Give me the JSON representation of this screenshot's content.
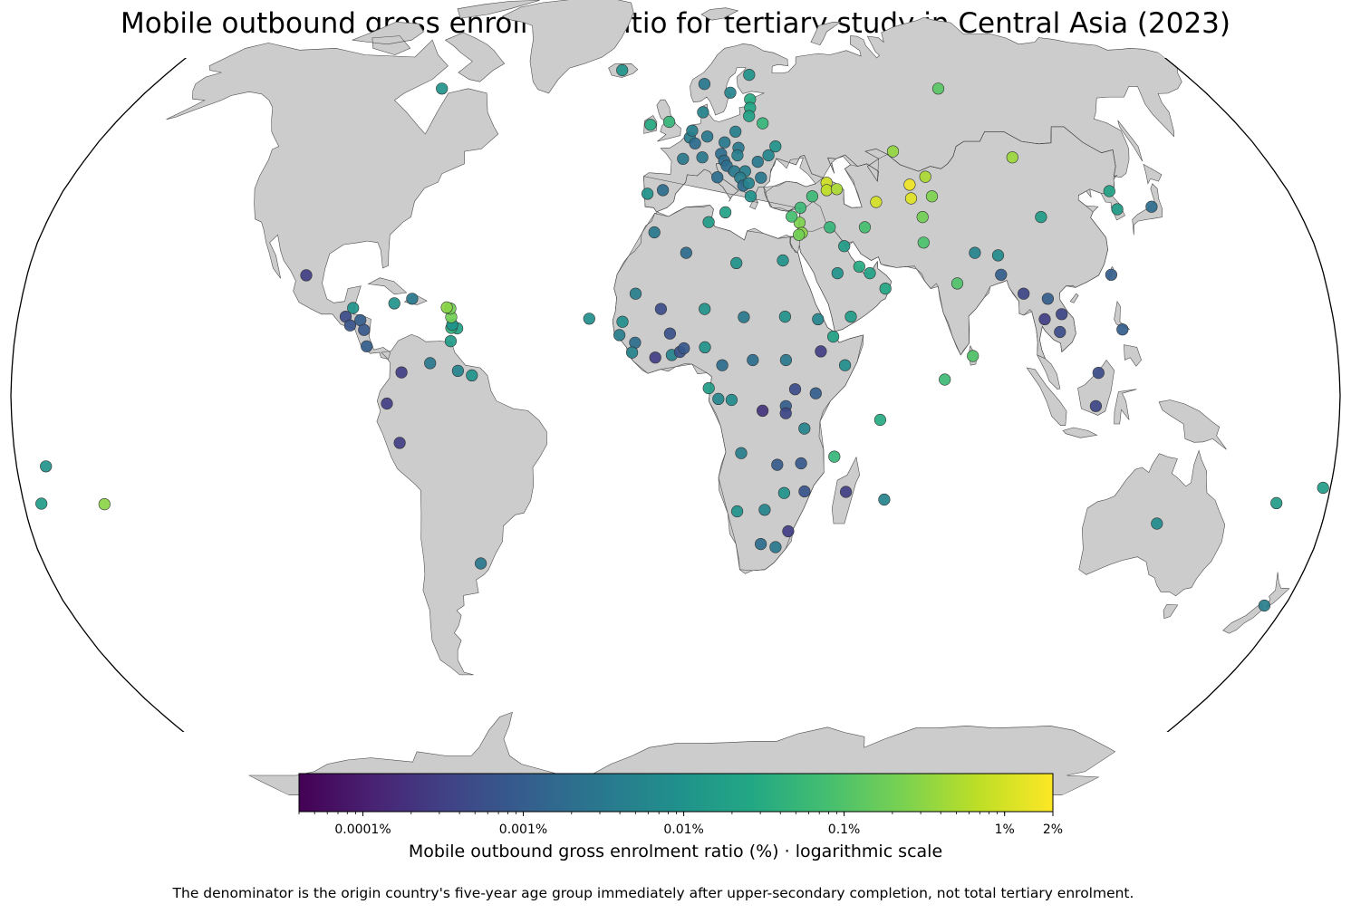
{
  "title": "Mobile outbound gross enrolment ratio for tertiary study in Central Asia (2023)",
  "colorbar": {
    "label": "Mobile outbound gross enrolment ratio (%) · logarithmic scale",
    "min_percent": 4e-05,
    "max_percent": 2,
    "scale": "log",
    "colormap": "viridis",
    "ticks": [
      {
        "value": 0.0001,
        "label": "0.0001%"
      },
      {
        "value": 0.001,
        "label": "0.001%"
      },
      {
        "value": 0.01,
        "label": "0.01%"
      },
      {
        "value": 0.1,
        "label": "0.1%"
      },
      {
        "value": 1,
        "label": "1%"
      },
      {
        "value": 2,
        "label": "2%"
      }
    ]
  },
  "footnote": "The denominator is the origin country's five-year age group immediately after upper-secondary completion, not total tertiary enrolment.",
  "colors": {
    "land": "#cccccc",
    "ocean": "#ffffff",
    "border": "#000000",
    "marker_edge": "#333333"
  },
  "map": {
    "projection": "Robinson",
    "points": [
      {
        "lon": 69.3,
        "lat": 41.3,
        "value": 1.6
      },
      {
        "lon": 68.8,
        "lat": 38.6,
        "value": 1.2
      },
      {
        "lon": 74.6,
        "lat": 42.9,
        "value": 0.5
      },
      {
        "lon": 58.4,
        "lat": 37.9,
        "value": 1.0
      },
      {
        "lon": 67.0,
        "lat": 48.0,
        "value": 0.35
      },
      {
        "lon": 44.8,
        "lat": 41.7,
        "value": 0.9
      },
      {
        "lon": 44.5,
        "lat": 40.2,
        "value": 0.7
      },
      {
        "lon": 47.5,
        "lat": 40.4,
        "value": 0.5
      },
      {
        "lon": 103.0,
        "lat": 46.8,
        "value": 0.4
      },
      {
        "lon": 71.0,
        "lat": 35.0,
        "value": 0.2
      },
      {
        "lon": 75.0,
        "lat": 39.0,
        "value": 0.25
      },
      {
        "lon": 90.0,
        "lat": 61.0,
        "value": 0.12
      },
      {
        "lon": 54.0,
        "lat": 33.0,
        "value": 0.08
      },
      {
        "lon": 36.2,
        "lat": 36.8,
        "value": 0.06
      },
      {
        "lon": 35.5,
        "lat": 33.9,
        "value": 0.25
      },
      {
        "lon": 35.9,
        "lat": 31.9,
        "value": 0.3
      },
      {
        "lon": 35.0,
        "lat": 31.5,
        "value": 0.2
      },
      {
        "lon": 33.4,
        "lat": 35.1,
        "value": 0.08
      },
      {
        "lon": 40.0,
        "lat": 39.0,
        "value": 0.06
      },
      {
        "lon": 44.0,
        "lat": 33.0,
        "value": 0.05
      },
      {
        "lon": 47.5,
        "lat": 29.3,
        "value": 0.015
      },
      {
        "lon": 51.2,
        "lat": 25.3,
        "value": 0.03
      },
      {
        "lon": 54.0,
        "lat": 24.0,
        "value": 0.02
      },
      {
        "lon": 58.0,
        "lat": 21.0,
        "value": 0.025
      },
      {
        "lon": 45.0,
        "lat": 24.0,
        "value": 0.01
      },
      {
        "lon": 48.0,
        "lat": 15.5,
        "value": 0.015
      },
      {
        "lon": 70.0,
        "lat": 30.0,
        "value": 0.09
      },
      {
        "lon": 78.0,
        "lat": 22.0,
        "value": 0.1
      },
      {
        "lon": 84.0,
        "lat": 28.0,
        "value": 0.005
      },
      {
        "lon": 90.4,
        "lat": 23.7,
        "value": 0.001
      },
      {
        "lon": 90.4,
        "lat": 27.5,
        "value": 0.007
      },
      {
        "lon": 73.0,
        "lat": 3.2,
        "value": 0.06
      },
      {
        "lon": 80.8,
        "lat": 7.8,
        "value": 0.1
      },
      {
        "lon": 105.0,
        "lat": 35.0,
        "value": 0.015
      },
      {
        "lon": 127.5,
        "lat": 40.0,
        "value": 0.02
      },
      {
        "lon": 127.8,
        "lat": 36.5,
        "value": 0.015
      },
      {
        "lon": 138.0,
        "lat": 37.0,
        "value": 0.002
      },
      {
        "lon": 121.0,
        "lat": 23.7,
        "value": 0.001
      },
      {
        "lon": 96.0,
        "lat": 20.0,
        "value": 0.0004
      },
      {
        "lon": 102.5,
        "lat": 19.0,
        "value": 0.001
      },
      {
        "lon": 101.0,
        "lat": 15.0,
        "value": 0.0003
      },
      {
        "lon": 105.8,
        "lat": 16.0,
        "value": 0.0004
      },
      {
        "lon": 104.9,
        "lat": 12.5,
        "value": 0.0005
      },
      {
        "lon": 122.0,
        "lat": 13.0,
        "value": 0.001
      },
      {
        "lon": 114.7,
        "lat": 4.5,
        "value": 0.0005
      },
      {
        "lon": 113.9,
        "lat": -2.0,
        "value": 0.0004
      },
      {
        "lon": 134.0,
        "lat": -25.0,
        "value": 0.007
      },
      {
        "lon": 174.0,
        "lat": -41.0,
        "value": 0.004
      },
      {
        "lon": 166.0,
        "lat": -21.0,
        "value": 0.015
      },
      {
        "lon": 178.0,
        "lat": -18.0,
        "value": 0.015
      },
      {
        "lon": -172.0,
        "lat": -13.8,
        "value": 0.01
      },
      {
        "lon": -175.2,
        "lat": -21.1,
        "value": 0.015
      },
      {
        "lon": -157.8,
        "lat": -21.2,
        "value": 0.3
      },
      {
        "lon": 9.0,
        "lat": 56.0,
        "value": 0.005
      },
      {
        "lon": 10.0,
        "lat": 62.0,
        "value": 0.003
      },
      {
        "lon": 18.6,
        "lat": 60.1,
        "value": 0.005
      },
      {
        "lon": 26.0,
        "lat": 64.0,
        "value": 0.01
      },
      {
        "lon": 25.0,
        "lat": 58.7,
        "value": 0.03
      },
      {
        "lon": 24.6,
        "lat": 56.9,
        "value": 0.025
      },
      {
        "lon": 23.9,
        "lat": 55.2,
        "value": 0.02
      },
      {
        "lon": 28.0,
        "lat": 53.7,
        "value": 0.05
      },
      {
        "lon": 31.0,
        "lat": 49.0,
        "value": 0.01
      },
      {
        "lon": 28.5,
        "lat": 47.2,
        "value": 0.006
      },
      {
        "lon": -19.0,
        "lat": 65.0,
        "value": 0.01
      },
      {
        "lon": -8.0,
        "lat": 53.4,
        "value": 0.03
      },
      {
        "lon": -2.0,
        "lat": 54.0,
        "value": 0.05
      },
      {
        "lon": 2.3,
        "lat": 46.5,
        "value": 0.003
      },
      {
        "lon": 4.5,
        "lat": 50.8,
        "value": 0.004
      },
      {
        "lon": 5.3,
        "lat": 52.2,
        "value": 0.004
      },
      {
        "lon": 6.1,
        "lat": 49.6,
        "value": 0.002
      },
      {
        "lon": 10.0,
        "lat": 51.0,
        "value": 0.003
      },
      {
        "lon": 8.2,
        "lat": 46.8,
        "value": 0.003
      },
      {
        "lon": 14.0,
        "lat": 47.5,
        "value": 0.002
      },
      {
        "lon": 15.3,
        "lat": 49.8,
        "value": 0.003
      },
      {
        "lon": 19.0,
        "lat": 52.0,
        "value": 0.004
      },
      {
        "lon": 19.5,
        "lat": 48.7,
        "value": 0.003
      },
      {
        "lon": 19.0,
        "lat": 47.2,
        "value": 0.004
      },
      {
        "lon": 14.8,
        "lat": 46.1,
        "value": 0.002
      },
      {
        "lon": 15.5,
        "lat": 45.1,
        "value": 0.002
      },
      {
        "lon": 17.7,
        "lat": 44.0,
        "value": 0.003
      },
      {
        "lon": 20.9,
        "lat": 44.0,
        "value": 0.004
      },
      {
        "lon": 19.3,
        "lat": 42.7,
        "value": 0.004
      },
      {
        "lon": 20.0,
        "lat": 41.1,
        "value": 0.002
      },
      {
        "lon": 21.7,
        "lat": 41.6,
        "value": 0.005
      },
      {
        "lon": 25.5,
        "lat": 42.7,
        "value": 0.003
      },
      {
        "lon": 25.0,
        "lat": 45.9,
        "value": 0.003
      },
      {
        "lon": 22.0,
        "lat": 39.0,
        "value": 0.01
      },
      {
        "lon": 12.5,
        "lat": 42.8,
        "value": 0.002
      },
      {
        "lon": -3.7,
        "lat": 40.2,
        "value": 0.002
      },
      {
        "lon": -8.2,
        "lat": 39.5,
        "value": 0.01
      },
      {
        "lon": 14.4,
        "lat": 35.9,
        "value": 0.02
      },
      {
        "lon": -6.0,
        "lat": 32.0,
        "value": 0.003
      },
      {
        "lon": 3.0,
        "lat": 28.0,
        "value": 0.002
      },
      {
        "lon": 9.5,
        "lat": 34.0,
        "value": 0.015
      },
      {
        "lon": 17.0,
        "lat": 26.0,
        "value": 0.01
      },
      {
        "lon": 30.0,
        "lat": 26.5,
        "value": 0.01
      },
      {
        "lon": 30.0,
        "lat": 15.5,
        "value": 0.01
      },
      {
        "lon": -11.0,
        "lat": 20.0,
        "value": 0.004
      },
      {
        "lon": -14.5,
        "lat": 14.5,
        "value": 0.008
      },
      {
        "lon": -4.0,
        "lat": 17.0,
        "value": 0.0005
      },
      {
        "lon": 8.0,
        "lat": 17.0,
        "value": 0.01
      },
      {
        "lon": 18.7,
        "lat": 15.4,
        "value": 0.003
      },
      {
        "lon": -15.3,
        "lat": 11.9,
        "value": 0.004
      },
      {
        "lon": -11.0,
        "lat": 10.4,
        "value": 0.002
      },
      {
        "lon": -11.8,
        "lat": 8.5,
        "value": 0.005
      },
      {
        "lon": -5.5,
        "lat": 7.5,
        "value": 0.0003
      },
      {
        "lon": -1.5,
        "lat": 12.2,
        "value": 0.0006
      },
      {
        "lon": -1.0,
        "lat": 8.0,
        "value": 0.005
      },
      {
        "lon": 1.2,
        "lat": 8.6,
        "value": 0.0006
      },
      {
        "lon": 2.3,
        "lat": 9.3,
        "value": 0.0008
      },
      {
        "lon": 8.0,
        "lat": 9.5,
        "value": 0.01
      },
      {
        "lon": 12.7,
        "lat": 6.0,
        "value": 0.002
      },
      {
        "lon": 9.0,
        "lat": 1.5,
        "value": 0.015
      },
      {
        "lon": 11.6,
        "lat": -0.6,
        "value": 0.006
      },
      {
        "lon": 15.2,
        "lat": -0.8,
        "value": 0.007
      },
      {
        "lon": 21.0,
        "lat": 7.0,
        "value": 0.002
      },
      {
        "lon": 30.0,
        "lat": 7.0,
        "value": 0.003
      },
      {
        "lon": 39.5,
        "lat": 8.7,
        "value": 0.0003
      },
      {
        "lon": 39.0,
        "lat": 15.0,
        "value": 0.006
      },
      {
        "lon": 43.0,
        "lat": 11.6,
        "value": 0.02
      },
      {
        "lon": 46.0,
        "lat": 6.0,
        "value": 0.008
      },
      {
        "lon": 38.0,
        "lat": 0.5,
        "value": 0.001
      },
      {
        "lon": 32.4,
        "lat": 1.3,
        "value": 0.0005
      },
      {
        "lon": 23.6,
        "lat": -2.9,
        "value": 0.0002
      },
      {
        "lon": 29.9,
        "lat": -2.0,
        "value": 0.001
      },
      {
        "lon": 29.9,
        "lat": -3.4,
        "value": 0.0004
      },
      {
        "lon": 35.0,
        "lat": -6.4,
        "value": 0.005
      },
      {
        "lon": 17.9,
        "lat": -11.2,
        "value": 0.004
      },
      {
        "lon": 27.8,
        "lat": -13.5,
        "value": 0.0009
      },
      {
        "lon": 34.3,
        "lat": -13.2,
        "value": 0.0008
      },
      {
        "lon": 35.5,
        "lat": -18.7,
        "value": 0.0007
      },
      {
        "lon": 29.9,
        "lat": -19.0,
        "value": 0.01
      },
      {
        "lon": 24.7,
        "lat": -22.3,
        "value": 0.005
      },
      {
        "lon": 17.1,
        "lat": -22.6,
        "value": 0.01
      },
      {
        "lon": 24.0,
        "lat": -29.0,
        "value": 0.002
      },
      {
        "lon": 31.5,
        "lat": -26.5,
        "value": 0.0003
      },
      {
        "lon": 28.2,
        "lat": -29.6,
        "value": 0.003
      },
      {
        "lon": 46.9,
        "lat": -18.8,
        "value": 0.0003
      },
      {
        "lon": 57.6,
        "lat": -20.3,
        "value": 0.005
      },
      {
        "lon": 55.5,
        "lat": -4.7,
        "value": 0.03
      },
      {
        "lon": 43.3,
        "lat": -11.9,
        "value": 0.05
      },
      {
        "lon": -23.6,
        "lat": 15.1,
        "value": 0.008
      },
      {
        "lon": -55.5,
        "lat": -32.8,
        "value": 0.003
      },
      {
        "lon": -75.0,
        "lat": -9.2,
        "value": 0.0003
      },
      {
        "lon": -78.2,
        "lat": -1.5,
        "value": 0.0003
      },
      {
        "lon": -74.3,
        "lat": 4.6,
        "value": 0.0003
      },
      {
        "lon": -66.6,
        "lat": 6.4,
        "value": 0.003
      },
      {
        "lon": -59.0,
        "lat": 4.9,
        "value": 0.005
      },
      {
        "lon": -55.2,
        "lat": 4.0,
        "value": 0.01
      },
      {
        "lon": -61.2,
        "lat": 10.7,
        "value": 0.015
      },
      {
        "lon": -59.6,
        "lat": 13.2,
        "value": 0.02
      },
      {
        "lon": -61.2,
        "lat": 13.3,
        "value": 0.04
      },
      {
        "lon": -61.0,
        "lat": 13.9,
        "value": 0.01
      },
      {
        "lon": -61.4,
        "lat": 15.4,
        "value": 0.2
      },
      {
        "lon": -61.8,
        "lat": 17.1,
        "value": 0.2
      },
      {
        "lon": -62.8,
        "lat": 17.3,
        "value": 0.3
      },
      {
        "lon": -72.5,
        "lat": 19.0,
        "value": 0.003
      },
      {
        "lon": -77.3,
        "lat": 18.1,
        "value": 0.01
      },
      {
        "lon": -88.5,
        "lat": 17.2,
        "value": 0.01
      },
      {
        "lon": -90.3,
        "lat": 15.5,
        "value": 0.0005
      },
      {
        "lon": -86.2,
        "lat": 14.8,
        "value": 0.001
      },
      {
        "lon": -88.9,
        "lat": 13.8,
        "value": 0.0007
      },
      {
        "lon": -85.0,
        "lat": 12.9,
        "value": 0.0008
      },
      {
        "lon": -84.0,
        "lat": 9.7,
        "value": 0.001
      },
      {
        "lon": -102.5,
        "lat": 23.6,
        "value": 0.0003
      },
      {
        "lon": -80.0,
        "lat": 61.0,
        "value": 0.01
      }
    ]
  }
}
